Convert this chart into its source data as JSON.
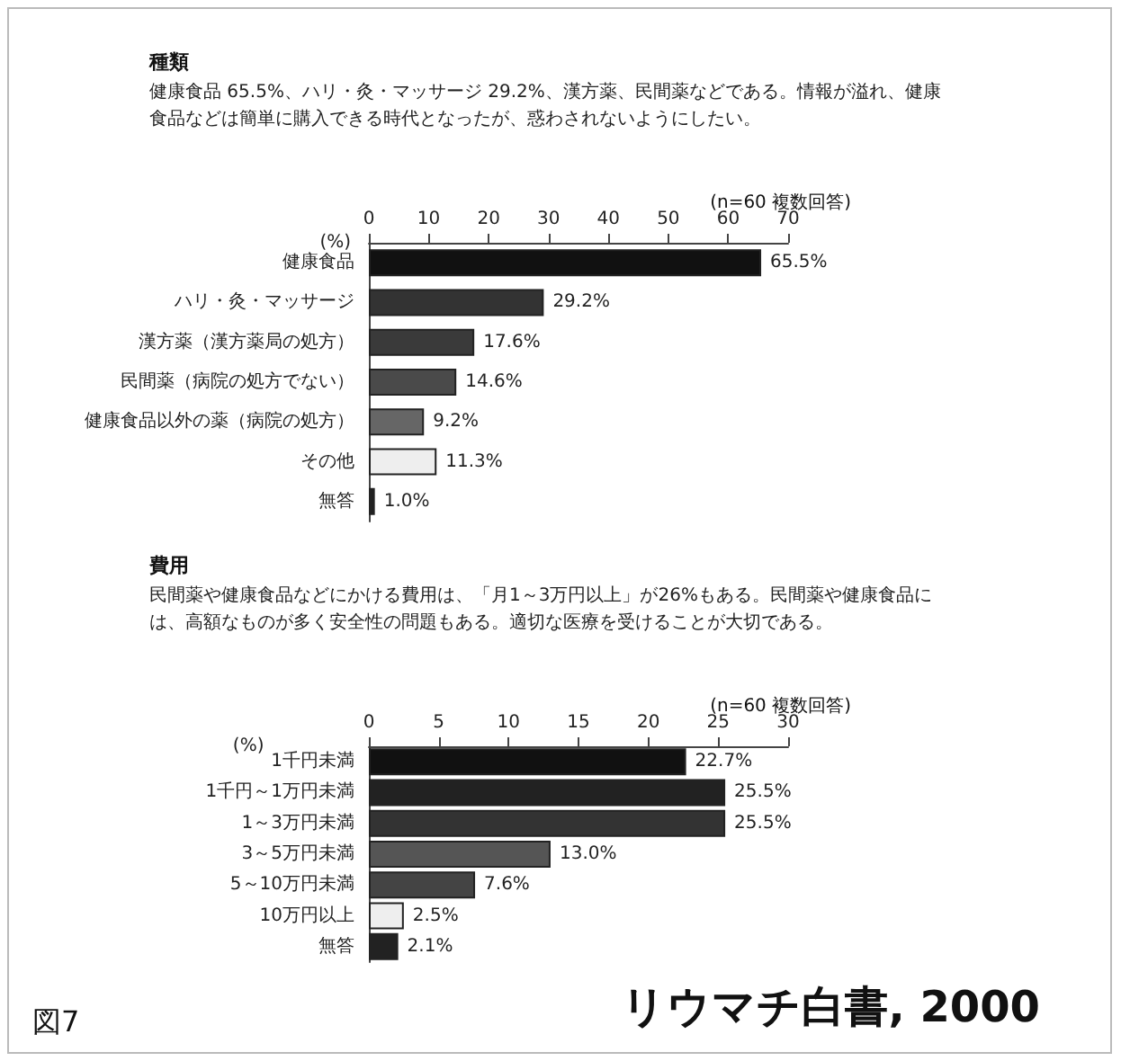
{
  "chart_data": [
    {
      "type": "bar",
      "orientation": "horizontal",
      "title": "種類",
      "subtitle": "健康食品 65.5%、ハリ・灸・マッサージ 29.2%、漢方薬、民間薬などである。情報が溢れ、健康食品などは簡単に購入できる時代となったが、惑わされないようにしたい。",
      "xlabel": "(%)",
      "categories": [
        "健康食品",
        "ハリ・灸・マッサージ",
        "漢方薬（漢方薬局の処方）",
        "民間薬（病院の処方でない）",
        "健康食品以外の薬（病院の処方）",
        "その他",
        "無答"
      ],
      "values": [
        65.5,
        29.2,
        17.6,
        14.6,
        9.2,
        11.3,
        1.0
      ],
      "value_labels": [
        "65.5%",
        "29.2%",
        "17.6%",
        "14.6%",
        "9.2%",
        "11.3%",
        "1.0%"
      ],
      "colors": [
        "#111111",
        "#333333",
        "#3a3a3a",
        "#4a4a4a",
        "#666666",
        "#eeeeee",
        "#222222"
      ],
      "xlim": [
        0,
        70
      ],
      "xticks": [
        0,
        10,
        20,
        30,
        40,
        50,
        60,
        70
      ],
      "grid": false,
      "annotations": [
        "(n=60 複数回答)"
      ]
    },
    {
      "type": "bar",
      "orientation": "horizontal",
      "title": "費用",
      "subtitle": "民間薬や健康食品などにかける費用は、「月1～3万円以上」が26%もある。民間薬や健康食品には、高額なものが多く安全性の問題もある。適切な医療を受けることが大切である。",
      "xlabel": "(%)",
      "categories": [
        "1千円未満",
        "1千円～1万円未満",
        "1～3万円未満",
        "3～5万円未満",
        "5～10万円未満",
        "10万円以上",
        "無答"
      ],
      "values": [
        22.7,
        25.5,
        25.5,
        13.0,
        7.6,
        2.5,
        2.1
      ],
      "value_labels": [
        "22.7%",
        "25.5%",
        "25.5%",
        "13.0%",
        "7.6%",
        "2.5%",
        "2.1%"
      ],
      "colors": [
        "#111111",
        "#222222",
        "#333333",
        "#555555",
        "#444444",
        "#eeeeee",
        "#222222"
      ],
      "xlim": [
        0,
        30
      ],
      "xticks": [
        0,
        5,
        10,
        15,
        20,
        25,
        30
      ],
      "grid": false,
      "annotations": [
        "(n=60 複数回答)",
        "図7",
        "リウマチ白書, 2000"
      ]
    }
  ]
}
